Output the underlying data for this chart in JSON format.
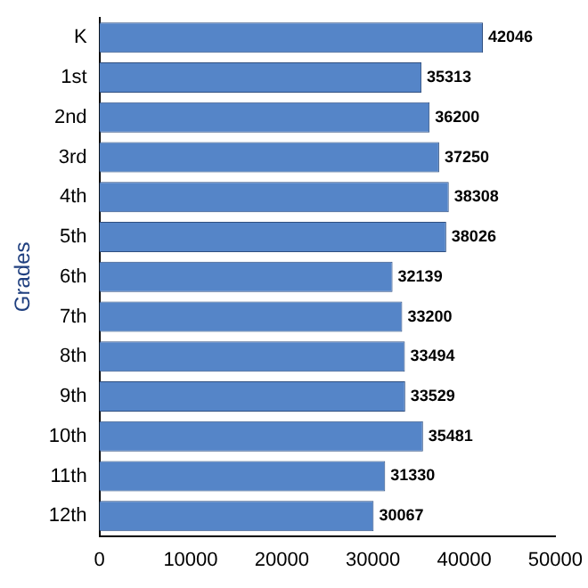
{
  "chart_data": {
    "type": "bar",
    "orientation": "horizontal",
    "ylabel": "Grades",
    "categories": [
      "K",
      "1st",
      "2nd",
      "3rd",
      "4th",
      "5th",
      "6th",
      "7th",
      "8th",
      "9th",
      "10th",
      "11th",
      "12th"
    ],
    "values": [
      42046,
      35313,
      36200,
      37250,
      38308,
      38026,
      32139,
      33200,
      33494,
      33529,
      35481,
      31330,
      30067
    ],
    "color": "#5585c8",
    "xlim": [
      0,
      50000
    ],
    "xticks": [
      0,
      10000,
      20000,
      30000,
      40000,
      50000
    ],
    "grid": false,
    "legend": false,
    "data_labels": true
  }
}
